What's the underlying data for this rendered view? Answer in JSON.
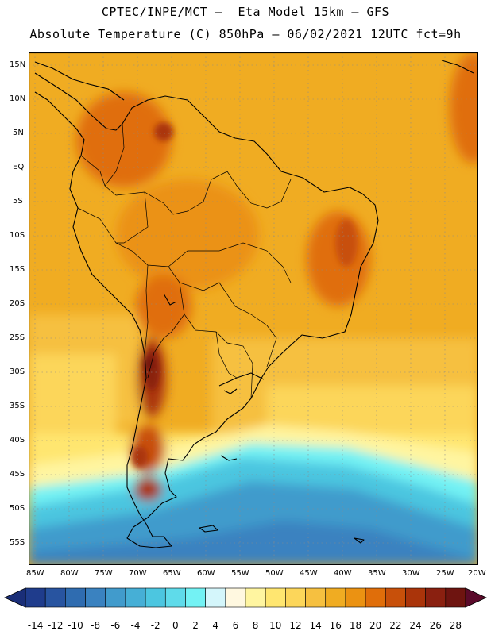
{
  "header": {
    "line1": "CPTEC/INPE/MCT –  Eta Model 15km – GFS",
    "line2": "Absolute Temperature (C) 850hPa – 06/02/2021 12UTC fct=9h"
  },
  "map": {
    "lat_labels": [
      "15N",
      "10N",
      "5N",
      "EQ",
      "5S",
      "10S",
      "15S",
      "20S",
      "25S",
      "30S",
      "35S",
      "40S",
      "45S",
      "50S",
      "55S"
    ],
    "lon_labels": [
      "85W",
      "80W",
      "75W",
      "70W",
      "65W",
      "60W",
      "55W",
      "50W",
      "45W",
      "40W",
      "35W",
      "30W",
      "25W",
      "20W"
    ],
    "lat_range": [
      17.0,
      -58.0
    ],
    "lon_range": [
      -86.0,
      -19.5
    ]
  },
  "colorbar": {
    "labels": [
      "-14",
      "-12",
      "-10",
      "-8",
      "-6",
      "-4",
      "-2",
      "0",
      "2",
      "4",
      "6",
      "8",
      "10",
      "12",
      "14",
      "16",
      "18",
      "20",
      "22",
      "24",
      "26",
      "28"
    ],
    "colors": [
      "#1f3c8c",
      "#2854a0",
      "#2f6cb0",
      "#3a82c0",
      "#419bcc",
      "#46afd6",
      "#4cc6e0",
      "#5fdbea",
      "#73f2f4",
      "#d4f6fb",
      "#fff8e0",
      "#fff5a0",
      "#ffe670",
      "#fcd65a",
      "#f6c040",
      "#f0ac22",
      "#eb9212",
      "#e06e0a",
      "#c8500a",
      "#aa340a",
      "#8a2010",
      "#6e1410"
    ],
    "under_color": "#1a2e78",
    "over_color": "#5a0a2a"
  }
}
